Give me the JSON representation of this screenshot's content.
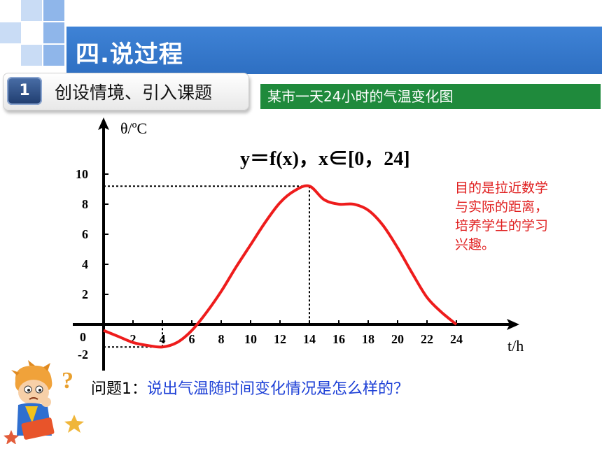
{
  "header": {
    "title": "四.说过程"
  },
  "section": {
    "number": "1",
    "title": "创设情境、引入课题"
  },
  "caption": "某市一天24小时的气温变化图",
  "formula": "y＝f(x)，x∈[0，24]",
  "note": "目的是拉近数学与实际的距离，培养学生的学习兴趣。",
  "question": {
    "label": "问题1：",
    "body": "说出气温随时间变化情况是怎么样的？"
  },
  "colors": {
    "title_band": "#3f83d6",
    "caption_box": "#1f8a3c",
    "curve": "#ee1c1c",
    "note": "#e02020",
    "question": "#1c3fd6"
  },
  "icons": [
    "thinking-boy-icon",
    "question-mark-icon",
    "star-icon"
  ],
  "chart_data": {
    "type": "line",
    "title": "",
    "xlabel": "t/h",
    "ylabel": "θ/ºC",
    "origin_label": "0",
    "xticks": [
      2,
      4,
      6,
      8,
      10,
      12,
      14,
      16,
      18,
      20,
      22,
      24
    ],
    "yticks": [
      -2,
      2,
      4,
      6,
      8,
      10
    ],
    "xlim": [
      0,
      24
    ],
    "ylim": [
      -2,
      10
    ],
    "series": [
      {
        "x": [
          0,
          1,
          2,
          3,
          4,
          5,
          6,
          7,
          8,
          9,
          10,
          11,
          12,
          13,
          14,
          15,
          16,
          17,
          18,
          19,
          20,
          21,
          22,
          23,
          24
        ],
        "y": [
          -0.4,
          -0.8,
          -1.2,
          -1.4,
          -1.5,
          -1.2,
          -0.4,
          0.8,
          2.2,
          3.8,
          5.3,
          6.8,
          8.1,
          8.9,
          9.2,
          8.3,
          8.0,
          8.0,
          7.6,
          6.6,
          5.1,
          3.4,
          1.8,
          0.8,
          0.0
        ]
      }
    ],
    "guides": [
      {
        "x": 14,
        "y": 9.2,
        "label": "maximum"
      },
      {
        "x": 4,
        "y": -1.5,
        "label": "minimum"
      }
    ]
  }
}
